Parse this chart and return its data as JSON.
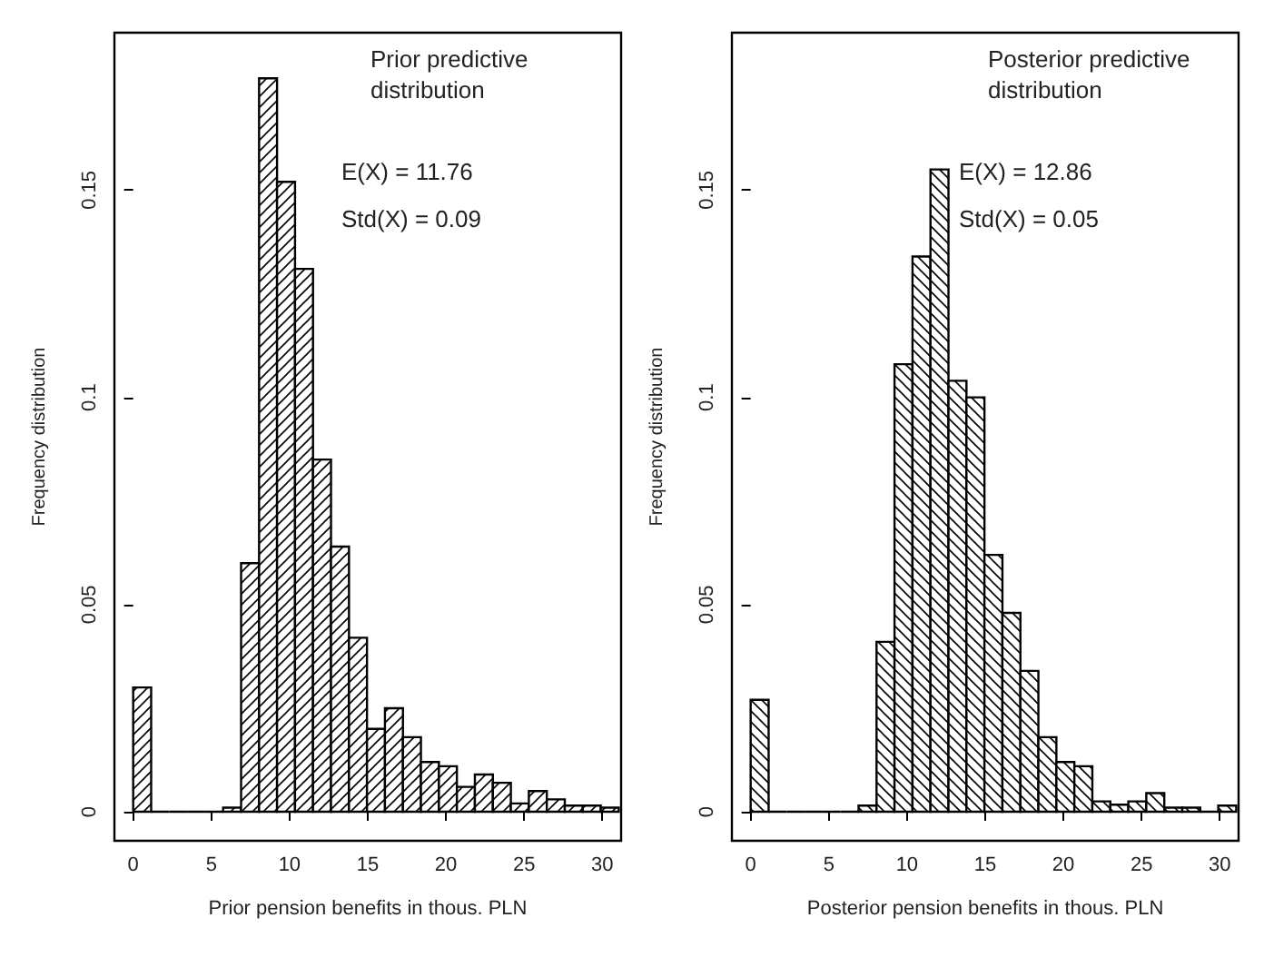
{
  "chart_data": [
    {
      "type": "histogram",
      "xlabel": "Prior pension benefits in thous. PLN",
      "ylabel": "Frequency distribution",
      "annotations": [
        "Prior predictive distribution",
        "E(X) = 11.76",
        "Std(X) = 0.09"
      ],
      "color": "#000000",
      "bins": [
        0,
        1.15,
        2.3,
        3.45,
        4.6,
        5.75,
        6.9,
        8.05,
        9.2,
        10.35,
        11.5,
        12.65,
        13.8,
        14.95,
        16.1,
        17.25,
        18.4,
        19.55,
        20.7,
        21.85,
        23,
        24.15,
        25.3,
        26.45,
        27.6,
        28.75,
        29.9,
        31.05
      ],
      "values": [
        0.03,
        0,
        0,
        0,
        0,
        0.001,
        0.06,
        0.177,
        0.152,
        0.131,
        0.085,
        0.064,
        0.042,
        0.02,
        0.025,
        0.018,
        0.012,
        0.011,
        0.006,
        0.009,
        0.007,
        0.002,
        0.005,
        0.003,
        0.0015,
        0.0015,
        0.001
      ],
      "xlim": [
        -1.2,
        31.2
      ],
      "ylim": [
        -0.007,
        0.188
      ],
      "xticks": [
        0,
        5,
        10,
        15,
        20,
        25,
        30
      ],
      "yticks": [
        0,
        0.05,
        0.1,
        0.15
      ]
    },
    {
      "type": "histogram",
      "xlabel": "Posterior pension benefits in thous. PLN",
      "ylabel": "Frequency distribution",
      "annotations": [
        "Posterior predictive distribution",
        "E(X) = 12.86",
        "Std(X) = 0.05"
      ],
      "color": "#000000",
      "bins": [
        0,
        1.15,
        2.3,
        3.45,
        4.6,
        5.75,
        6.9,
        8.05,
        9.2,
        10.35,
        11.5,
        12.65,
        13.8,
        14.95,
        16.1,
        17.25,
        18.4,
        19.55,
        20.7,
        21.85,
        23,
        24.15,
        25.3,
        26.45,
        27.6,
        28.75,
        29.9,
        31.05
      ],
      "values": [
        0.027,
        0,
        0,
        0,
        0,
        0,
        0.0015,
        0.041,
        0.108,
        0.134,
        0.155,
        0.104,
        0.1,
        0.062,
        0.048,
        0.034,
        0.018,
        0.012,
        0.011,
        0.0025,
        0.0017,
        0.0025,
        0.0045,
        0.001,
        0.001,
        0,
        0.0015
      ],
      "xlim": [
        -1.2,
        31.2
      ],
      "ylim": [
        -0.007,
        0.188
      ],
      "xticks": [
        0,
        5,
        10,
        15,
        20,
        25,
        30
      ],
      "yticks": [
        0,
        0.05,
        0.1,
        0.15
      ]
    }
  ]
}
